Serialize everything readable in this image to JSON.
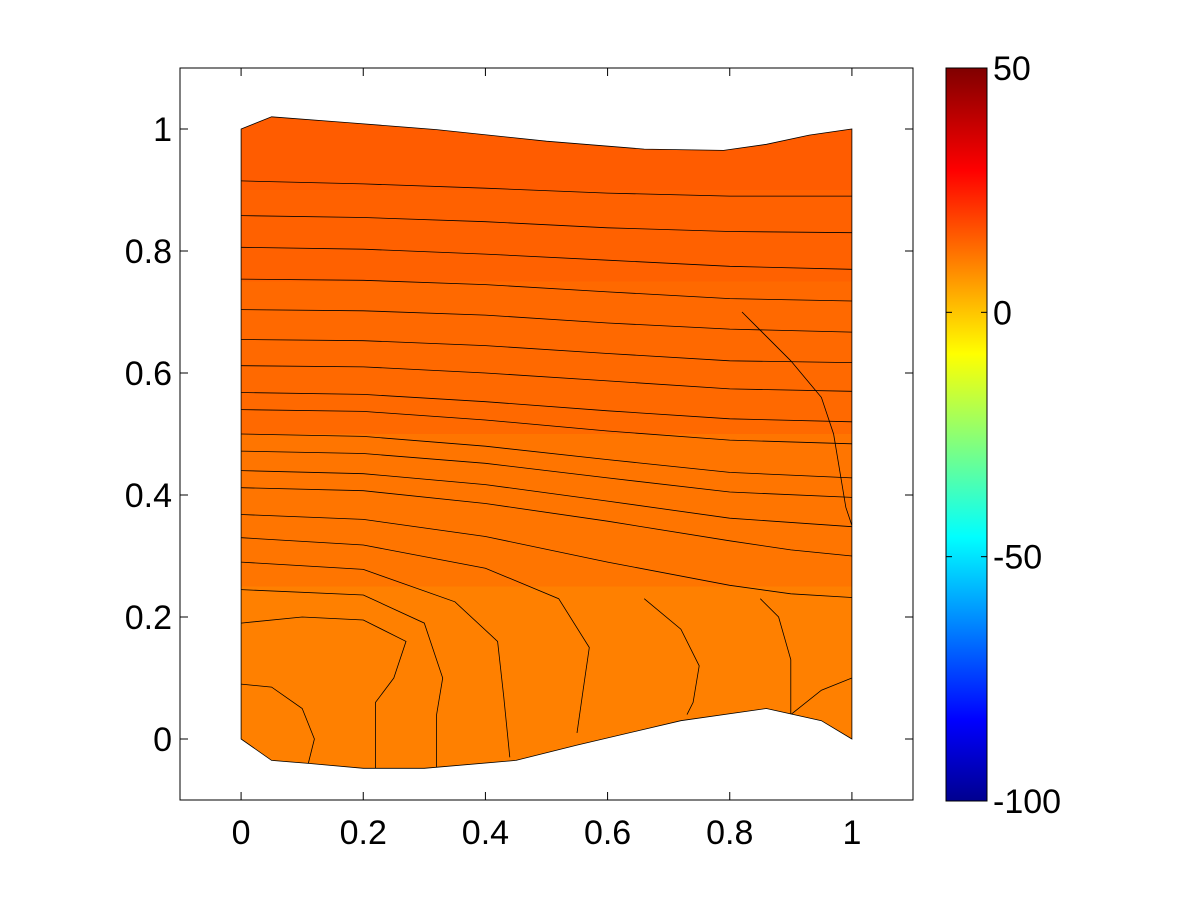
{
  "chart_data": {
    "type": "contour",
    "title": "",
    "xlabel": "",
    "ylabel": "",
    "xlim": [
      -0.1,
      1.1
    ],
    "ylim": [
      -0.1,
      1.1
    ],
    "x_ticks": [
      0,
      0.2,
      0.4,
      0.6,
      0.8,
      1
    ],
    "x_tick_labels": [
      "0",
      "0.2",
      "0.4",
      "0.6",
      "0.8",
      "1"
    ],
    "y_ticks": [
      0,
      0.2,
      0.4,
      0.6,
      0.8,
      1
    ],
    "y_tick_labels": [
      "0",
      "0.2",
      "0.4",
      "0.6",
      "0.8",
      "1"
    ],
    "colormap": "jet",
    "grid": false,
    "colorbar": {
      "limits": [
        -100,
        50
      ],
      "ticks": [
        50,
        0,
        -50,
        -100
      ],
      "tick_labels": [
        "50",
        "0",
        "-50",
        "-100"
      ]
    },
    "domain_boundary": [
      [
        0,
        0
      ],
      [
        0,
        1
      ],
      [
        0.05,
        1.02
      ],
      [
        0.18,
        1.01
      ],
      [
        0.32,
        0.999
      ],
      [
        0.5,
        0.98
      ],
      [
        0.66,
        0.967
      ],
      [
        0.79,
        0.965
      ],
      [
        0.86,
        0.975
      ],
      [
        0.93,
        0.99
      ],
      [
        1,
        1
      ],
      [
        1,
        0
      ],
      [
        0.95,
        0.03
      ],
      [
        0.86,
        0.05
      ],
      [
        0.72,
        0.03
      ],
      [
        0.55,
        -0.01
      ],
      [
        0.45,
        -0.035
      ],
      [
        0.3,
        -0.048
      ],
      [
        0.2,
        -0.048
      ],
      [
        0.11,
        -0.04
      ],
      [
        0.05,
        -0.035
      ],
      [
        0,
        0
      ]
    ],
    "contour_lines": [
      [
        [
          0,
          0.915
        ],
        [
          0.2,
          0.91
        ],
        [
          0.4,
          0.903
        ],
        [
          0.6,
          0.895
        ],
        [
          0.8,
          0.89
        ],
        [
          1,
          0.89
        ]
      ],
      [
        [
          0,
          0.858
        ],
        [
          0.2,
          0.855
        ],
        [
          0.4,
          0.848
        ],
        [
          0.6,
          0.838
        ],
        [
          0.8,
          0.832
        ],
        [
          1,
          0.83
        ]
      ],
      [
        [
          0,
          0.806
        ],
        [
          0.2,
          0.803
        ],
        [
          0.4,
          0.795
        ],
        [
          0.6,
          0.785
        ],
        [
          0.8,
          0.775
        ],
        [
          1,
          0.77
        ]
      ],
      [
        [
          0,
          0.754
        ],
        [
          0.2,
          0.752
        ],
        [
          0.4,
          0.745
        ],
        [
          0.6,
          0.733
        ],
        [
          0.8,
          0.722
        ],
        [
          1,
          0.718
        ]
      ],
      [
        [
          0,
          0.704
        ],
        [
          0.2,
          0.702
        ],
        [
          0.4,
          0.695
        ],
        [
          0.6,
          0.682
        ],
        [
          0.8,
          0.672
        ],
        [
          1,
          0.667
        ]
      ],
      [
        [
          0,
          0.655
        ],
        [
          0.2,
          0.653
        ],
        [
          0.4,
          0.645
        ],
        [
          0.6,
          0.632
        ],
        [
          0.8,
          0.62
        ],
        [
          1,
          0.617
        ]
      ],
      [
        [
          0,
          0.612
        ],
        [
          0.2,
          0.61
        ],
        [
          0.4,
          0.6
        ],
        [
          0.6,
          0.587
        ],
        [
          0.8,
          0.574
        ],
        [
          1,
          0.57
        ]
      ],
      [
        [
          0,
          0.568
        ],
        [
          0.2,
          0.565
        ],
        [
          0.4,
          0.553
        ],
        [
          0.6,
          0.538
        ],
        [
          0.8,
          0.525
        ],
        [
          1,
          0.52
        ]
      ],
      [
        [
          0,
          0.54
        ],
        [
          0.2,
          0.537
        ],
        [
          0.4,
          0.523
        ],
        [
          0.6,
          0.505
        ],
        [
          0.8,
          0.49
        ],
        [
          1,
          0.484
        ]
      ],
      [
        [
          0,
          0.5
        ],
        [
          0.2,
          0.496
        ],
        [
          0.4,
          0.48
        ],
        [
          0.6,
          0.458
        ],
        [
          0.8,
          0.437
        ],
        [
          1,
          0.428
        ]
      ],
      [
        [
          0,
          0.472
        ],
        [
          0.2,
          0.468
        ],
        [
          0.4,
          0.452
        ],
        [
          0.6,
          0.428
        ],
        [
          0.8,
          0.405
        ],
        [
          1,
          0.396
        ]
      ],
      [
        [
          0,
          0.44
        ],
        [
          0.2,
          0.435
        ],
        [
          0.4,
          0.417
        ],
        [
          0.6,
          0.39
        ],
        [
          0.8,
          0.362
        ],
        [
          1,
          0.348
        ]
      ],
      [
        [
          0,
          0.412
        ],
        [
          0.2,
          0.407
        ],
        [
          0.4,
          0.386
        ],
        [
          0.6,
          0.357
        ],
        [
          0.8,
          0.325
        ],
        [
          0.9,
          0.31
        ],
        [
          1,
          0.3
        ]
      ],
      [
        [
          0,
          0.368
        ],
        [
          0.2,
          0.36
        ],
        [
          0.4,
          0.332
        ],
        [
          0.6,
          0.29
        ],
        [
          0.8,
          0.252
        ],
        [
          0.9,
          0.238
        ],
        [
          1,
          0.232
        ]
      ],
      [
        [
          0,
          0.33
        ],
        [
          0.2,
          0.318
        ],
        [
          0.4,
          0.28
        ],
        [
          0.52,
          0.23
        ],
        [
          0.57,
          0.15
        ],
        [
          0.56,
          0.08
        ],
        [
          0.55,
          0.01
        ]
      ],
      [
        [
          0,
          0.29
        ],
        [
          0.2,
          0.278
        ],
        [
          0.35,
          0.225
        ],
        [
          0.42,
          0.16
        ],
        [
          0.43,
          0.07
        ],
        [
          0.44,
          -0.03
        ]
      ],
      [
        [
          0,
          0.245
        ],
        [
          0.2,
          0.236
        ],
        [
          0.3,
          0.19
        ],
        [
          0.33,
          0.1
        ],
        [
          0.32,
          0.04
        ],
        [
          0.32,
          -0.046
        ]
      ],
      [
        [
          0,
          0.19
        ],
        [
          0.1,
          0.2
        ],
        [
          0.2,
          0.195
        ],
        [
          0.27,
          0.16
        ],
        [
          0.25,
          0.1
        ],
        [
          0.22,
          0.06
        ],
        [
          0.22,
          -0.048
        ]
      ],
      [
        [
          0,
          0.09
        ],
        [
          0.05,
          0.085
        ],
        [
          0.1,
          0.05
        ],
        [
          0.12,
          0.0
        ],
        [
          0.11,
          -0.04
        ]
      ],
      [
        [
          0.82,
          0.7
        ],
        [
          0.9,
          0.62
        ],
        [
          0.95,
          0.56
        ],
        [
          0.97,
          0.5
        ],
        [
          0.98,
          0.44
        ],
        [
          0.99,
          0.38
        ],
        [
          1,
          0.35
        ]
      ],
      [
        [
          0.66,
          0.23
        ],
        [
          0.72,
          0.18
        ],
        [
          0.75,
          0.12
        ],
        [
          0.74,
          0.06
        ],
        [
          0.73,
          0.04
        ]
      ],
      [
        [
          0.85,
          0.23
        ],
        [
          0.88,
          0.2
        ],
        [
          0.9,
          0.13
        ],
        [
          0.9,
          0.07
        ],
        [
          0.9,
          0.04
        ]
      ],
      [
        [
          0.9,
          0.04
        ],
        [
          0.95,
          0.08
        ],
        [
          1,
          0.1
        ]
      ]
    ],
    "fill_colors": [
      "#ff8000",
      "#ff7000",
      "#ff6000",
      "#ff5400",
      "#ff4d00"
    ]
  }
}
